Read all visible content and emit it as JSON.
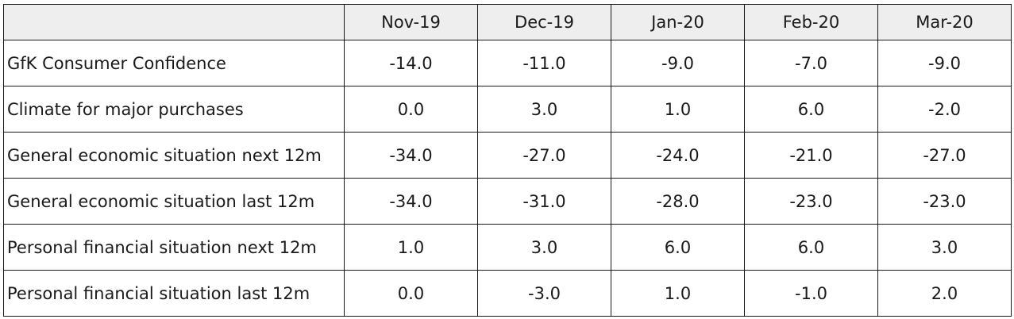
{
  "table": {
    "columns": [
      "Nov-19",
      "Dec-19",
      "Jan-20",
      "Feb-20",
      "Mar-20"
    ],
    "rows": [
      {
        "label": "GfK Consumer Confidence",
        "values": [
          "-14.0",
          "-11.0",
          "-9.0",
          "-7.0",
          "-9.0"
        ]
      },
      {
        "label": "Climate for major purchases",
        "values": [
          "0.0",
          "3.0",
          "1.0",
          "6.0",
          "-2.0"
        ]
      },
      {
        "label": "General economic situation next 12m",
        "values": [
          "-34.0",
          "-27.0",
          "-24.0",
          "-21.0",
          "-27.0"
        ]
      },
      {
        "label": "General economic situation last 12m",
        "values": [
          "-34.0",
          "-31.0",
          "-28.0",
          "-23.0",
          "-23.0"
        ]
      },
      {
        "label": "Personal financial situation next 12m",
        "values": [
          "1.0",
          "3.0",
          "6.0",
          "6.0",
          "3.0"
        ]
      },
      {
        "label": "Personal financial situation last 12m",
        "values": [
          "0.0",
          "-3.0",
          "1.0",
          "-1.0",
          "2.0"
        ]
      }
    ]
  },
  "colors": {
    "header_bg": "#eeeeee",
    "border": "#1a1a1a",
    "text": "#1a1a1a",
    "cell_bg": "#ffffff"
  }
}
